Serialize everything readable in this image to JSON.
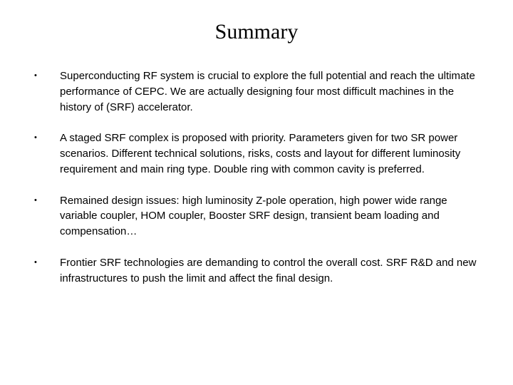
{
  "title": "Summary",
  "bullets": [
    "Superconducting RF system is crucial to explore the full potential and reach the ultimate performance of CEPC. We are actually designing four most difficult machines in the history of (SRF) accelerator.",
    "A staged SRF complex is proposed with priority. Parameters given for two SR power scenarios. Different technical solutions, risks, costs and layout for different luminosity requirement and main ring type. Double ring with common cavity is preferred.",
    "Remained design issues: high luminosity Z-pole operation, high power wide range variable coupler, HOM coupler, Booster SRF design, transient beam loading and compensation…",
    "Frontier SRF technologies are demanding to control the overall cost. SRF R&D and new infrastructures to push the limit and affect the final design."
  ],
  "style": {
    "background_color": "#ffffff",
    "text_color": "#000000",
    "title_fontsize": 30,
    "body_fontsize": 15,
    "bullet_char": "•"
  }
}
